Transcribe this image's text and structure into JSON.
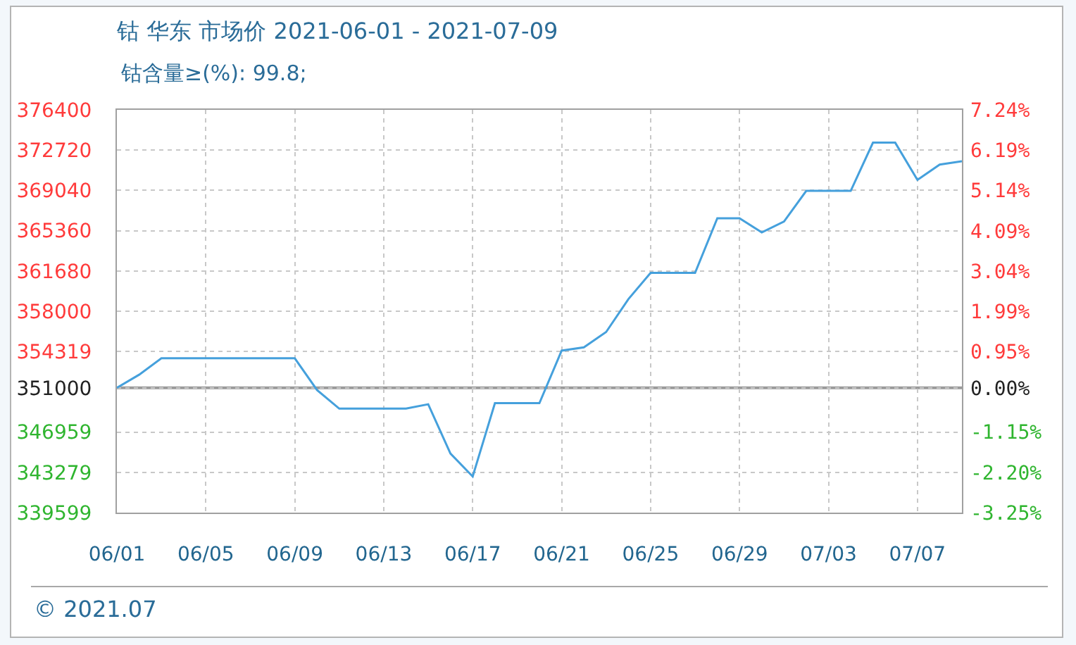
{
  "chart_data": {
    "type": "line",
    "title": "钴 华东 市场价 2021-06-01 - 2021-07-09",
    "subtitle": "钴含量≥(%): 99.8;",
    "annotations": [
      "© 2021.07"
    ],
    "x": [
      "2021-06-01",
      "2021-06-02",
      "2021-06-03",
      "2021-06-04",
      "2021-06-05",
      "2021-06-06",
      "2021-06-07",
      "2021-06-08",
      "2021-06-09",
      "2021-06-10",
      "2021-06-11",
      "2021-06-12",
      "2021-06-13",
      "2021-06-14",
      "2021-06-15",
      "2021-06-16",
      "2021-06-17",
      "2021-06-18",
      "2021-06-19",
      "2021-06-20",
      "2021-06-21",
      "2021-06-22",
      "2021-06-23",
      "2021-06-24",
      "2021-06-25",
      "2021-06-26",
      "2021-06-27",
      "2021-06-28",
      "2021-06-29",
      "2021-06-30",
      "2021-07-01",
      "2021-07-02",
      "2021-07-03",
      "2021-07-04",
      "2021-07-05",
      "2021-07-06",
      "2021-07-07",
      "2021-07-08",
      "2021-07-09"
    ],
    "series": [
      {
        "color": "#45a0dc",
        "values": [
          351000,
          352200,
          353700,
          353700,
          353700,
          353700,
          353700,
          353700,
          353700,
          350800,
          349100,
          349100,
          349100,
          349100,
          349500,
          345000,
          342900,
          349600,
          349600,
          349600,
          354400,
          354700,
          356100,
          359100,
          361500,
          361500,
          361500,
          366500,
          366500,
          365200,
          366200,
          369000,
          369000,
          369000,
          373400,
          373400,
          370000,
          371400,
          371700
        ]
      }
    ],
    "xlim": [
      "2021-06-01",
      "2021-07-09"
    ],
    "xticks": [
      {
        "value": "2021-06-01",
        "label": "06/01"
      },
      {
        "value": "2021-06-05",
        "label": "06/05"
      },
      {
        "value": "2021-06-09",
        "label": "06/09"
      },
      {
        "value": "2021-06-13",
        "label": "06/13"
      },
      {
        "value": "2021-06-17",
        "label": "06/17"
      },
      {
        "value": "2021-06-21",
        "label": "06/21"
      },
      {
        "value": "2021-06-25",
        "label": "06/25"
      },
      {
        "value": "2021-06-29",
        "label": "06/29"
      },
      {
        "value": "2021-07-03",
        "label": "07/03"
      },
      {
        "value": "2021-07-07",
        "label": "07/07"
      }
    ],
    "ylim": [
      339599,
      376400
    ],
    "yticks": [
      376400,
      372720,
      369040,
      365360,
      361680,
      358000,
      354319,
      351000,
      346959,
      343279,
      339599
    ],
    "y2lim": [
      -3.25,
      7.24
    ],
    "y2ticks": [
      {
        "value": 7.24,
        "label": "7.24%"
      },
      {
        "value": 6.19,
        "label": "6.19%"
      },
      {
        "value": 5.14,
        "label": "5.14%"
      },
      {
        "value": 4.09,
        "label": "4.09%"
      },
      {
        "value": 3.04,
        "label": "3.04%"
      },
      {
        "value": 1.99,
        "label": "1.99%"
      },
      {
        "value": 0.95,
        "label": "0.95%"
      },
      {
        "value": 0,
        "label": "0.00%"
      },
      {
        "value": -1.15,
        "label": "-1.15%"
      },
      {
        "value": -2.2,
        "label": "-2.20%"
      },
      {
        "value": -3.25,
        "label": "-3.25%"
      }
    ],
    "ref_lines": [
      {
        "axis": "y",
        "value": 351000,
        "color": "#9a9a9a"
      }
    ],
    "grid": true
  }
}
